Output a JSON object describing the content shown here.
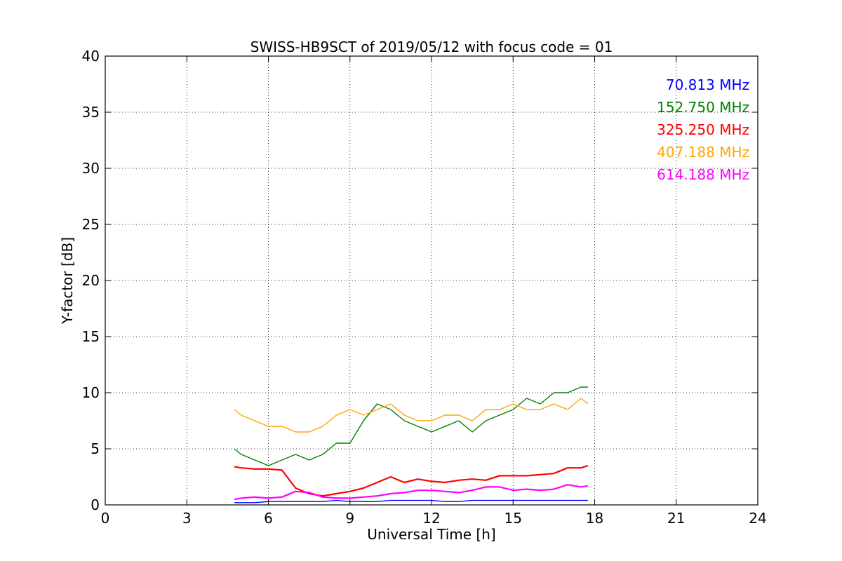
{
  "chart_data": {
    "type": "line",
    "title": "SWISS-HB9SCT of 2019/05/12 with focus code = 01",
    "xlabel": "Universal Time [h]",
    "ylabel": "Y-factor [dB]",
    "xlim": [
      0,
      24
    ],
    "ylim": [
      0,
      40
    ],
    "xticks": [
      0,
      3,
      6,
      9,
      12,
      15,
      18,
      21,
      24
    ],
    "yticks": [
      0,
      5,
      10,
      15,
      20,
      25,
      30,
      35,
      40
    ],
    "grid": true,
    "legend_placement": "top-right",
    "x": [
      4.75,
      5.0,
      5.5,
      6.0,
      6.5,
      7.0,
      7.5,
      8.0,
      8.5,
      9.0,
      9.5,
      10.0,
      10.5,
      11.0,
      11.5,
      12.0,
      12.5,
      13.0,
      13.5,
      14.0,
      14.5,
      15.0,
      15.5,
      16.0,
      16.5,
      17.0,
      17.5,
      17.75
    ],
    "series": [
      {
        "name": "70.813 MHz",
        "color": "#0000ff",
        "values": [
          0.2,
          0.2,
          0.2,
          0.3,
          0.3,
          0.3,
          0.3,
          0.3,
          0.4,
          0.3,
          0.3,
          0.3,
          0.4,
          0.4,
          0.4,
          0.4,
          0.3,
          0.3,
          0.4,
          0.4,
          0.4,
          0.4,
          0.4,
          0.4,
          0.4,
          0.4,
          0.4,
          0.4
        ]
      },
      {
        "name": "152.750 MHz",
        "color": "#008000",
        "values": [
          5.0,
          4.5,
          4.0,
          3.5,
          4.0,
          4.5,
          4.0,
          4.5,
          5.5,
          5.5,
          7.5,
          9.0,
          8.5,
          7.5,
          7.0,
          6.5,
          7.0,
          7.5,
          6.5,
          7.5,
          8.0,
          8.5,
          9.5,
          9.0,
          10.0,
          10.0,
          10.5,
          10.5
        ]
      },
      {
        "name": "325.250 MHz",
        "color": "#ff0000",
        "values": [
          3.4,
          3.3,
          3.2,
          3.2,
          3.1,
          1.5,
          1.0,
          0.8,
          1.0,
          1.2,
          1.5,
          2.0,
          2.5,
          2.0,
          2.3,
          2.1,
          2.0,
          2.2,
          2.3,
          2.2,
          2.6,
          2.6,
          2.6,
          2.7,
          2.8,
          3.3,
          3.3,
          3.5
        ]
      },
      {
        "name": "407.188 MHz",
        "color": "#ffa500",
        "values": [
          8.5,
          8.0,
          7.5,
          7.0,
          7.0,
          6.5,
          6.5,
          7.0,
          8.0,
          8.5,
          8.0,
          8.5,
          9.0,
          8.0,
          7.5,
          7.5,
          8.0,
          8.0,
          7.5,
          8.5,
          8.5,
          9.0,
          8.5,
          8.5,
          9.0,
          8.5,
          9.5,
          9.0
        ]
      },
      {
        "name": "614.188 MHz",
        "color": "#ff00ff",
        "values": [
          0.5,
          0.6,
          0.7,
          0.6,
          0.7,
          1.2,
          1.1,
          0.7,
          0.6,
          0.6,
          0.7,
          0.8,
          1.0,
          1.1,
          1.3,
          1.3,
          1.2,
          1.1,
          1.3,
          1.6,
          1.6,
          1.3,
          1.4,
          1.3,
          1.4,
          1.8,
          1.6,
          1.7
        ]
      }
    ]
  }
}
